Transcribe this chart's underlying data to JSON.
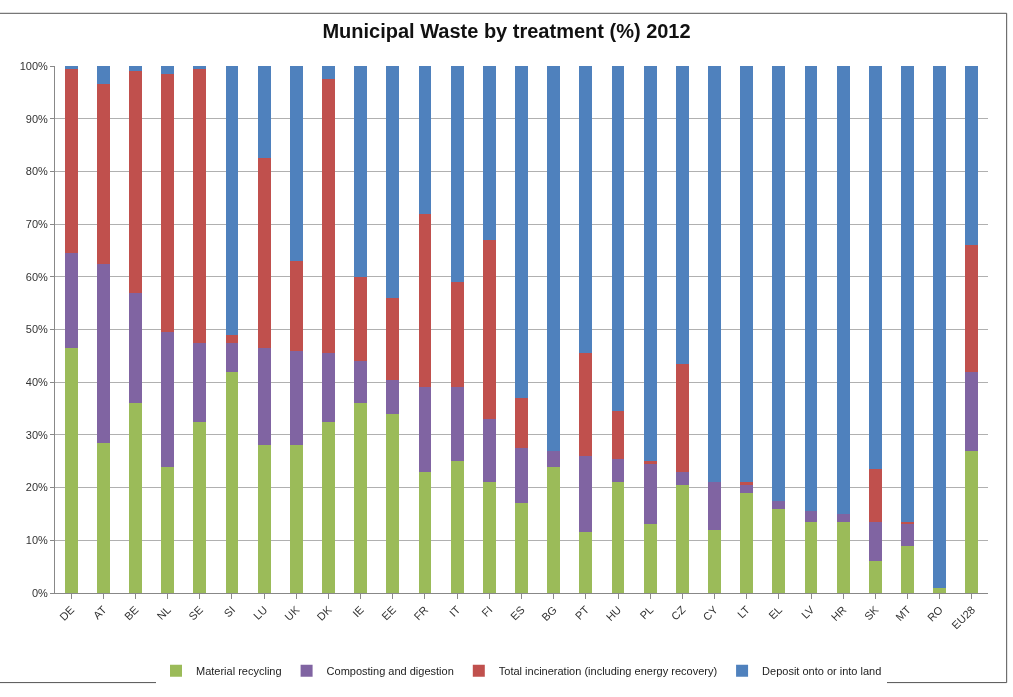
{
  "chart_data": {
    "type": "bar",
    "title": "Municipal Waste by treatment (%) 2012",
    "stacked": true,
    "grid": "y",
    "legend": "bottom",
    "categories": [
      "DE",
      "AT",
      "BE",
      "NL",
      "SE",
      "SI",
      "LU",
      "UK",
      "DK",
      "IE",
      "EE",
      "FR",
      "IT",
      "FI",
      "ES",
      "BG",
      "PT",
      "HU",
      "PL",
      "CZ",
      "CY",
      "LT",
      "EL",
      "LV",
      "HR",
      "SK",
      "MT",
      "RO",
      "EU28"
    ],
    "ylim": [
      0,
      100
    ],
    "yticks": [
      {
        "value": 0,
        "label": "0%"
      },
      {
        "value": 10,
        "label": "10%"
      },
      {
        "value": 20,
        "label": "20%"
      },
      {
        "value": 30,
        "label": "30%"
      },
      {
        "value": 40,
        "label": "40%"
      },
      {
        "value": 50,
        "label": "50%"
      },
      {
        "value": 60,
        "label": "60%"
      },
      {
        "value": 70,
        "label": "70%"
      },
      {
        "value": 80,
        "label": "80%"
      },
      {
        "value": 90,
        "label": "90%"
      },
      {
        "value": 100,
        "label": "100%"
      }
    ],
    "series": [
      {
        "name": "Material recycling",
        "color": "#9bbb59",
        "values": [
          46.5,
          28.5,
          36,
          24,
          32.5,
          42,
          28,
          28,
          32.5,
          36,
          34,
          23,
          25,
          21,
          17,
          24,
          11.5,
          21,
          13,
          20.5,
          12,
          19,
          16,
          13.5,
          13.5,
          6,
          9,
          1,
          27
        ]
      },
      {
        "name": "Composting and digestion",
        "color": "#8064a2",
        "values": [
          18,
          34,
          21,
          25.5,
          15,
          5.5,
          18.5,
          18,
          13,
          8,
          6.5,
          16,
          14,
          12,
          10.5,
          3,
          14.5,
          4.5,
          11.5,
          2.5,
          9,
          1.5,
          1.5,
          2,
          1.5,
          7.5,
          4,
          0,
          15
        ]
      },
      {
        "name": "Total incineration (including energy recovery)",
        "color": "#c0504d",
        "values": [
          35,
          34,
          42,
          49,
          52,
          1.5,
          36,
          17,
          52,
          16,
          15.5,
          33,
          20,
          34,
          9.5,
          0,
          19.5,
          9,
          0.5,
          20.5,
          0,
          0.5,
          0,
          0,
          0,
          10,
          0.5,
          0,
          24
        ]
      },
      {
        "name": "Deposit onto or into land",
        "color": "#4f81bd",
        "values": [
          0.5,
          3.5,
          1,
          1.5,
          0.5,
          51,
          17.5,
          37,
          2.5,
          40,
          44,
          28,
          41,
          33,
          63,
          73,
          54.5,
          65.5,
          75,
          56.5,
          79,
          79,
          82.5,
          84.5,
          85,
          76.5,
          86.5,
          99,
          34
        ]
      }
    ]
  }
}
